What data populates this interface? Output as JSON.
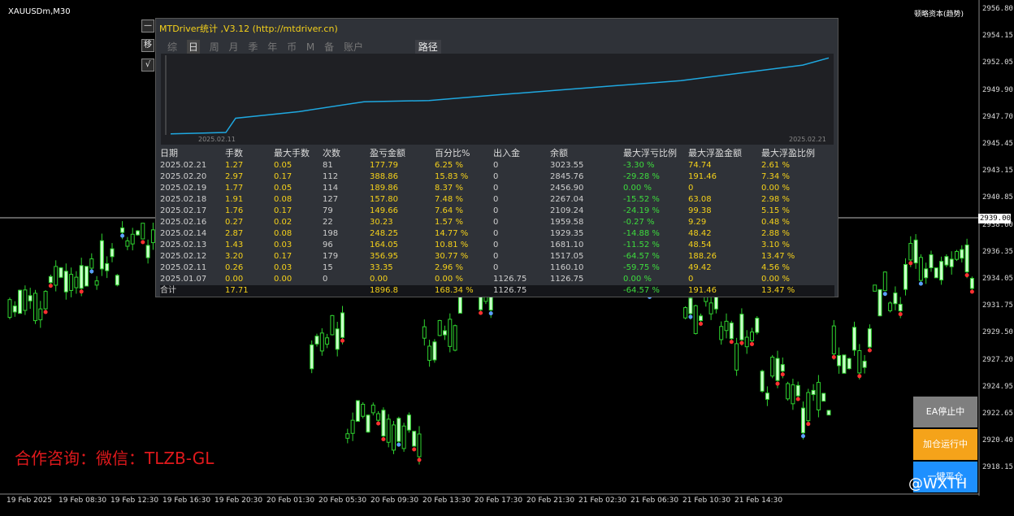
{
  "symbol": "XAUUSDm,M30",
  "top_right": "顿略资本(趋势)",
  "price_axis": [
    "2956.80",
    "2954.15",
    "2952.05",
    "2949.90",
    "2947.70",
    "2945.45",
    "2943.15",
    "2940.85",
    "2938.60",
    "2936.35",
    "2934.05",
    "2931.75",
    "2929.50",
    "2927.20",
    "2924.95",
    "2922.65",
    "2920.40",
    "2918.15"
  ],
  "current_price": "2939.00",
  "time_axis": [
    "19 Feb 2025",
    "19 Feb 08:30",
    "19 Feb 12:30",
    "19 Feb 16:30",
    "19 Feb 20:30",
    "20 Feb 01:30",
    "20 Feb 05:30",
    "20 Feb 09:30",
    "20 Feb 13:30",
    "20 Feb 17:30",
    "20 Feb 21:30",
    "21 Feb 02:30",
    "21 Feb 06:30",
    "21 Feb 10:30",
    "21 Feb 14:30"
  ],
  "panel": {
    "title": "MTDriver统计 ,V3.12 (http://mtdriver.cn)",
    "side_buttons": [
      "—",
      "移",
      "√"
    ],
    "tabs": [
      "综",
      "日",
      "周",
      "月",
      "季",
      "年",
      "币",
      "M",
      "备",
      "账户"
    ],
    "path_tab": "路径",
    "graph_start_date": "2025.02.11",
    "graph_end_date": "2025.02.21",
    "headers": [
      "日期",
      "手数",
      "最大手数",
      "次数",
      "盈亏金额",
      "百分比%",
      "出入金",
      "余额",
      "最大浮亏比例",
      "最大浮盈金额",
      "最大浮盈比例"
    ],
    "rows": [
      [
        "2025.02.21",
        "1.27",
        "0.05",
        "81",
        "177.79",
        "6.25 %",
        "0",
        "3023.55",
        "-3.30 %",
        "74.74",
        "2.61 %"
      ],
      [
        "2025.02.20",
        "2.97",
        "0.17",
        "112",
        "388.86",
        "15.83 %",
        "0",
        "2845.76",
        "-29.28 %",
        "191.46",
        "7.34 %"
      ],
      [
        "2025.02.19",
        "1.77",
        "0.05",
        "114",
        "189.86",
        "8.37 %",
        "0",
        "2456.90",
        "0.00 %",
        "0",
        "0.00 %"
      ],
      [
        "2025.02.18",
        "1.91",
        "0.08",
        "127",
        "157.80",
        "7.48 %",
        "0",
        "2267.04",
        "-15.52 %",
        "63.08",
        "2.98 %"
      ],
      [
        "2025.02.17",
        "1.76",
        "0.17",
        "79",
        "149.66",
        "7.64 %",
        "0",
        "2109.24",
        "-24.19 %",
        "99.38",
        "5.15 %"
      ],
      [
        "2025.02.16",
        "0.27",
        "0.02",
        "22",
        "30.23",
        "1.57 %",
        "0",
        "1959.58",
        "-0.27 %",
        "9.29",
        "0.48 %"
      ],
      [
        "2025.02.14",
        "2.87",
        "0.08",
        "198",
        "248.25",
        "14.77 %",
        "0",
        "1929.35",
        "-14.88 %",
        "48.42",
        "2.88 %"
      ],
      [
        "2025.02.13",
        "1.43",
        "0.03",
        "96",
        "164.05",
        "10.81 %",
        "0",
        "1681.10",
        "-11.52 %",
        "48.54",
        "3.10 %"
      ],
      [
        "2025.02.12",
        "3.20",
        "0.17",
        "179",
        "356.95",
        "30.77 %",
        "0",
        "1517.05",
        "-64.57 %",
        "188.26",
        "13.47 %"
      ],
      [
        "2025.02.11",
        "0.26",
        "0.03",
        "15",
        "33.35",
        "2.96 %",
        "0",
        "1160.10",
        "-59.75 %",
        "49.42",
        "4.56 %"
      ],
      [
        "2025.01.07",
        "0.00",
        "0.00",
        "0",
        "0.00",
        "0.00 %",
        "1126.75",
        "1126.75",
        "0.00 %",
        "0",
        "0.00 %"
      ]
    ],
    "total": [
      "合计",
      "17.71",
      "",
      "",
      "1896.8",
      "168.34 %",
      "1126.75",
      "",
      "-64.57 %",
      "191.46",
      "13.47 %"
    ]
  },
  "chart_data": {
    "type": "line",
    "x": [
      "2025.01.07",
      "2025.02.11",
      "2025.02.12",
      "2025.02.13",
      "2025.02.14",
      "2025.02.16",
      "2025.02.17",
      "2025.02.18",
      "2025.02.19",
      "2025.02.20",
      "2025.02.21"
    ],
    "series": [
      {
        "values": [
          1126.75,
          1160.1,
          1517.05,
          1681.1,
          1929.35,
          1959.58,
          2109.24,
          2267.04,
          2456.9,
          2845.76,
          3023.55
        ]
      }
    ]
  },
  "watermark": "合作咨询：微信：TLZB-GL",
  "ea_buttons": [
    {
      "label": "EA停止中",
      "color": "#7f7f7f"
    },
    {
      "label": "加仓运行中",
      "color": "#f5a31a"
    },
    {
      "label": "一键平仓",
      "color": "#1e90ff"
    }
  ],
  "overlay_tag": "@WXTH"
}
